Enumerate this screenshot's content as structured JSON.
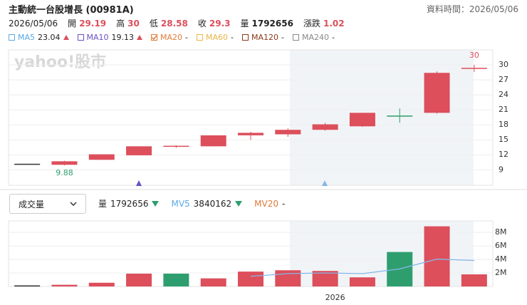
{
  "header": {
    "title": "主動統一台股增長 (00981A)",
    "data_time": "資料時間：2026/05/06",
    "date": "2026/05/06",
    "quote": [
      {
        "label": "開",
        "value": 29.19
      },
      {
        "label": "高",
        "value": 30
      },
      {
        "label": "低",
        "value": 28.58
      },
      {
        "label": "收",
        "value": 29.3
      },
      {
        "label": "量",
        "value": 1792656
      },
      {
        "label": "漲跌",
        "value": 1.02
      }
    ]
  },
  "ma_legend": [
    {
      "name": "MA5",
      "value": 23.04,
      "color": "#5aa9e6",
      "checked": false,
      "trend": "up"
    },
    {
      "name": "MA10",
      "value": 19.13,
      "color": "#6a4fc4",
      "checked": false,
      "trend": "up"
    },
    {
      "name": "MA20",
      "value": "-",
      "color": "#e07b39",
      "checked": true
    },
    {
      "name": "MA60",
      "value": "-",
      "color": "#e8b64a",
      "checked": false
    },
    {
      "name": "MA120",
      "value": "-",
      "color": "#8b3a1a",
      "checked": false
    },
    {
      "name": "MA240",
      "value": "-",
      "color": "#888888",
      "checked": false
    }
  ],
  "watermark": "yahoo!股市",
  "volume_selector": "成交量",
  "volume_legend": [
    {
      "name": "量",
      "value": 1792656,
      "color": "#333333",
      "trend": "down"
    },
    {
      "name": "MV5",
      "value": 3840162,
      "color": "#5aa9e6",
      "trend": "down"
    },
    {
      "name": "MV20",
      "value": "-",
      "color": "#e07b39"
    }
  ],
  "chart_data": [
    {
      "type": "candlestick",
      "categories": [
        null,
        null,
        null,
        null,
        null,
        null,
        null,
        null,
        null,
        null,
        null,
        null,
        null
      ],
      "open": [
        10.1,
        10.0,
        11.0,
        11.9,
        13.6,
        13.7,
        15.9,
        16.1,
        17.0,
        17.7,
        19.75,
        20.4,
        29.19
      ],
      "high": [
        10.1,
        10.8,
        12.1,
        13.7,
        13.9,
        15.9,
        16.6,
        17.3,
        18.4,
        20.4,
        21.3,
        28.7,
        30
      ],
      "low": [
        10.1,
        9.88,
        11.0,
        11.9,
        13.4,
        13.7,
        15.0,
        15.6,
        16.8,
        17.6,
        18.4,
        20.2,
        28.58
      ],
      "close": [
        10.1,
        10.7,
        12.1,
        13.7,
        13.7,
        15.9,
        16.4,
        17.0,
        18.1,
        20.4,
        19.7,
        28.4,
        29.3
      ],
      "up_color": "#dc4f5b",
      "down_color": "#2f9e6f",
      "flat_color": "#333333",
      "ylim": [
        5.9,
        33
      ],
      "yticks": [
        9,
        12,
        15,
        18,
        21,
        24,
        27,
        30
      ],
      "grid": true
    },
    {
      "type": "bar",
      "categories": [
        null,
        null,
        null,
        null,
        null,
        null,
        null,
        null,
        "2026",
        null,
        null,
        null,
        null
      ],
      "series": [
        {
          "name": "量",
          "values": [
            50000,
            250000,
            550000,
            1900000,
            1900000,
            1200000,
            2200000,
            2400000,
            2300000,
            1350000,
            5100000,
            8900000,
            1792656
          ],
          "colors": [
            "#333333",
            "#dc4f5b",
            "#dc4f5b",
            "#dc4f5b",
            "#2f9e6f",
            "#dc4f5b",
            "#dc4f5b",
            "#dc4f5b",
            "#dc4f5b",
            "#dc4f5b",
            "#2f9e6f",
            "#dc4f5b",
            "#dc4f5b"
          ]
        },
        {
          "name": "MV5",
          "type": "line",
          "color": "#86b7e8",
          "values": [
            null,
            null,
            null,
            null,
            null,
            null,
            1500000,
            1900000,
            2000000,
            1900000,
            2600000,
            4050000,
            3840162
          ]
        }
      ],
      "ylim": [
        0,
        9700000
      ],
      "yticks": [
        {
          "value": 2000000,
          "label": "2M"
        },
        {
          "value": 4000000,
          "label": "4M"
        },
        {
          "value": 6000000,
          "label": "6M"
        },
        {
          "value": 8000000,
          "label": "8M"
        }
      ],
      "grid": true
    }
  ]
}
